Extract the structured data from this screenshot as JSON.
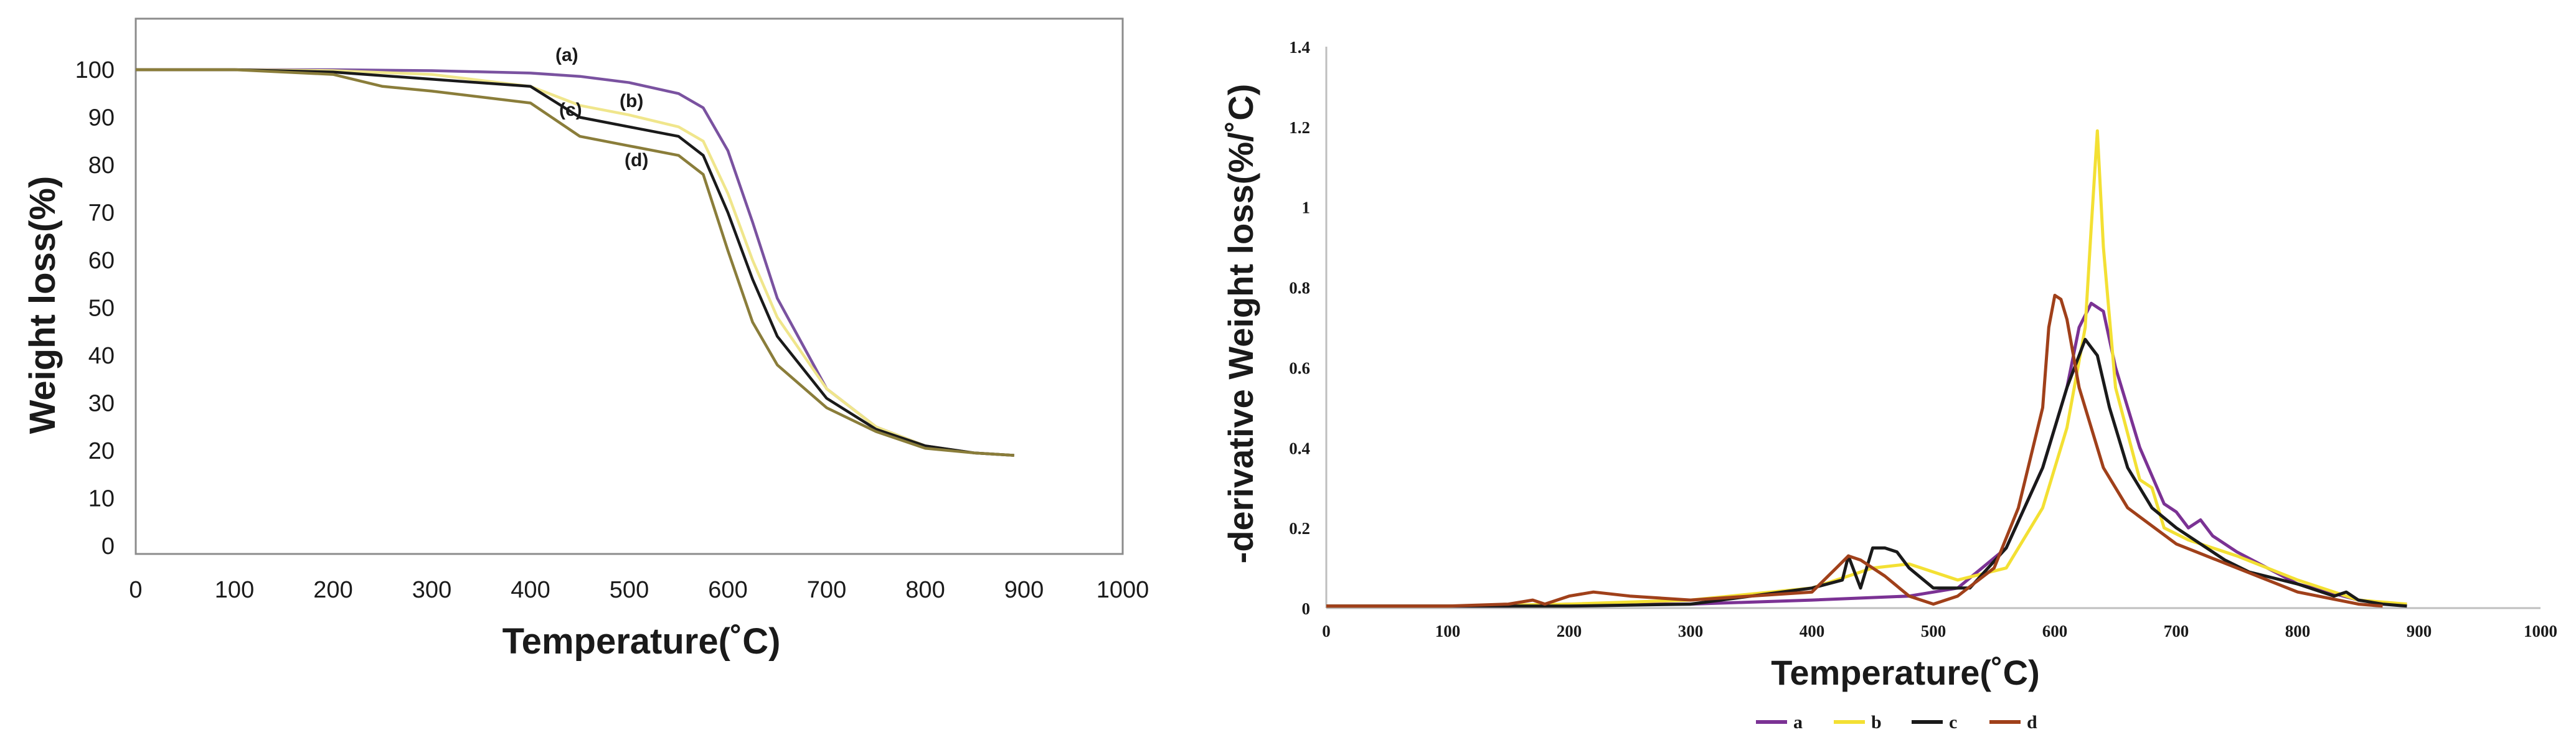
{
  "chart_data": [
    {
      "type": "line",
      "title": "",
      "xlabel": "Temperature(˚C)",
      "ylabel": "Weight loss(%)",
      "xlim": [
        0,
        1000
      ],
      "ylim": [
        0,
        100
      ],
      "x_ticks": [
        "0",
        "100",
        "200",
        "300",
        "400",
        "500",
        "600",
        "700",
        "800",
        "900",
        "1000"
      ],
      "y_ticks": [
        "0",
        "10",
        "20",
        "30",
        "40",
        "50",
        "60",
        "70",
        "80",
        "90",
        "100"
      ],
      "grid": false,
      "legend": "none",
      "annotations": [
        "(a)",
        "(b)",
        "(c)",
        "(d)"
      ],
      "series": [
        {
          "name": "(a)",
          "color": "#7a52a0",
          "x": [
            0,
            100,
            200,
            300,
            400,
            450,
            500,
            550,
            575,
            600,
            625,
            650,
            700,
            750,
            800,
            850,
            890
          ],
          "y": [
            100,
            100,
            100,
            99.8,
            99.3,
            98.6,
            97.3,
            95,
            92,
            83,
            68,
            52,
            33,
            25,
            21,
            19.5,
            19
          ]
        },
        {
          "name": "(b)",
          "color": "#f0e68c",
          "x": [
            0,
            100,
            200,
            300,
            400,
            450,
            500,
            550,
            575,
            600,
            625,
            650,
            700,
            750,
            800,
            850,
            890
          ],
          "y": [
            100,
            100,
            99.8,
            99,
            96.5,
            92.5,
            90.5,
            88,
            85,
            74,
            60,
            48,
            33,
            25,
            21,
            19.5,
            19
          ]
        },
        {
          "name": "(c)",
          "color": "#1a1a1a",
          "x": [
            0,
            100,
            200,
            300,
            400,
            450,
            500,
            550,
            575,
            600,
            625,
            650,
            700,
            750,
            800,
            850,
            890
          ],
          "y": [
            100,
            100,
            99.5,
            98,
            96.5,
            90,
            88,
            86,
            82,
            70,
            56,
            44,
            31,
            24.5,
            21,
            19.5,
            19
          ]
        },
        {
          "name": "(d)",
          "color": "#8a7d3a",
          "x": [
            0,
            100,
            200,
            250,
            300,
            400,
            450,
            500,
            550,
            575,
            600,
            625,
            650,
            700,
            750,
            800,
            850,
            890
          ],
          "y": [
            100,
            100,
            99,
            96.5,
            95.5,
            93,
            86,
            84,
            82,
            78,
            62,
            47,
            38,
            29,
            24,
            20.5,
            19.5,
            19
          ]
        }
      ]
    },
    {
      "type": "line",
      "title": "",
      "xlabel": "Temperature(˚C)",
      "ylabel": "-derivative Weight loss(%/˚C)",
      "xlim": [
        0,
        1000
      ],
      "ylim": [
        0,
        1.4
      ],
      "x_ticks": [
        "0",
        "100",
        "200",
        "300",
        "400",
        "500",
        "600",
        "700",
        "800",
        "900",
        "1000"
      ],
      "y_ticks": [
        "0",
        "0.2",
        "0.4",
        "0.6",
        "0.8",
        "1",
        "1.2",
        "1.4"
      ],
      "grid": false,
      "legend": "bottom",
      "series": [
        {
          "name": "a",
          "color": "#7b3294",
          "x": [
            0,
            100,
            150,
            200,
            300,
            400,
            480,
            520,
            560,
            590,
            610,
            620,
            630,
            640,
            650,
            670,
            690,
            700,
            710,
            720,
            730,
            750,
            800,
            850,
            880,
            890
          ],
          "y": [
            0.005,
            0.005,
            0.005,
            0.01,
            0.01,
            0.02,
            0.03,
            0.05,
            0.15,
            0.35,
            0.55,
            0.7,
            0.76,
            0.74,
            0.6,
            0.4,
            0.26,
            0.24,
            0.2,
            0.22,
            0.18,
            0.14,
            0.06,
            0.02,
            0.01,
            0.01
          ]
        },
        {
          "name": "b",
          "color": "#f3e033",
          "x": [
            0,
            100,
            200,
            300,
            400,
            450,
            480,
            520,
            560,
            590,
            610,
            625,
            630,
            635,
            640,
            650,
            670,
            680,
            690,
            710,
            750,
            800,
            850,
            890
          ],
          "y": [
            0.005,
            0.005,
            0.01,
            0.02,
            0.05,
            0.1,
            0.11,
            0.07,
            0.1,
            0.25,
            0.45,
            0.7,
            0.95,
            1.19,
            0.9,
            0.55,
            0.32,
            0.3,
            0.2,
            0.17,
            0.13,
            0.07,
            0.02,
            0.01
          ]
        },
        {
          "name": "c",
          "color": "#1a1a1a",
          "x": [
            0,
            100,
            150,
            200,
            300,
            400,
            425,
            430,
            440,
            450,
            460,
            470,
            480,
            500,
            530,
            560,
            590,
            610,
            625,
            630,
            635,
            645,
            660,
            680,
            700,
            740,
            760,
            800,
            830,
            840,
            850,
            870,
            890
          ],
          "y": [
            0.005,
            0.005,
            0.005,
            0.005,
            0.01,
            0.05,
            0.07,
            0.13,
            0.05,
            0.15,
            0.15,
            0.14,
            0.1,
            0.05,
            0.05,
            0.15,
            0.35,
            0.55,
            0.67,
            0.65,
            0.63,
            0.5,
            0.35,
            0.25,
            0.2,
            0.12,
            0.09,
            0.06,
            0.03,
            0.04,
            0.02,
            0.01,
            0.005
          ]
        },
        {
          "name": "d",
          "color": "#a0401a",
          "x": [
            0,
            100,
            150,
            170,
            180,
            200,
            220,
            250,
            300,
            400,
            420,
            430,
            440,
            460,
            480,
            500,
            520,
            550,
            570,
            590,
            595,
            600,
            605,
            610,
            620,
            630,
            640,
            660,
            700,
            750,
            800,
            850,
            870
          ],
          "y": [
            0.005,
            0.005,
            0.01,
            0.02,
            0.01,
            0.03,
            0.04,
            0.03,
            0.02,
            0.04,
            0.1,
            0.13,
            0.12,
            0.08,
            0.03,
            0.01,
            0.03,
            0.1,
            0.25,
            0.5,
            0.7,
            0.78,
            0.77,
            0.72,
            0.55,
            0.45,
            0.35,
            0.25,
            0.16,
            0.1,
            0.04,
            0.01,
            0.005
          ]
        }
      ]
    }
  ]
}
